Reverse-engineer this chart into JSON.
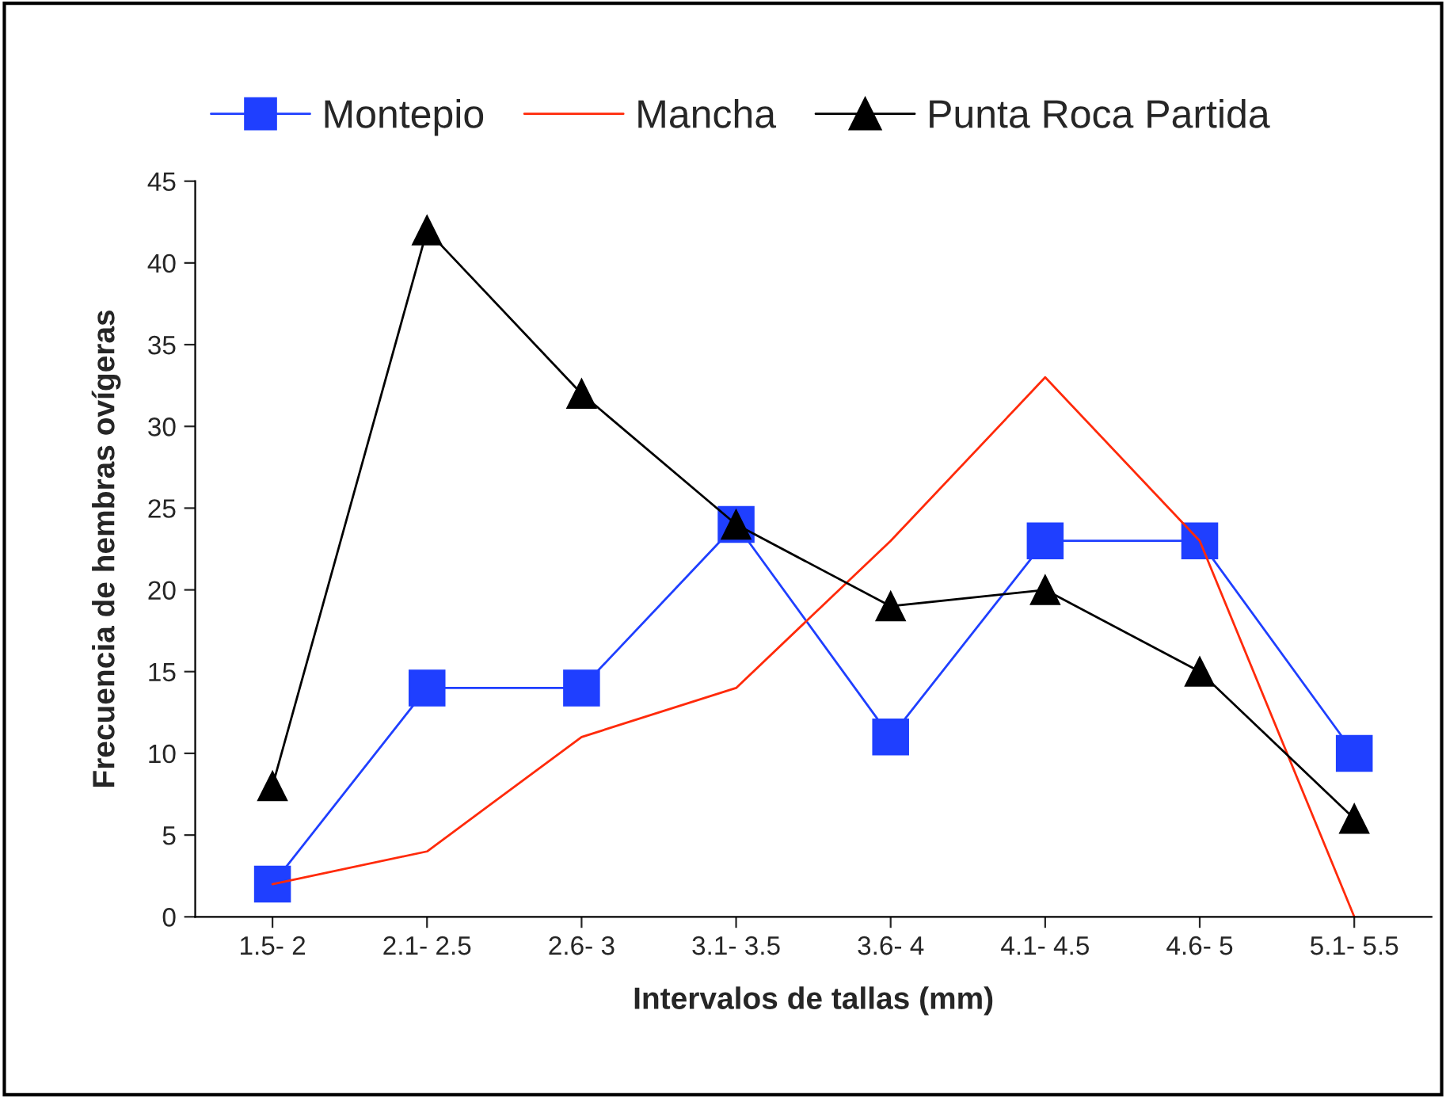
{
  "chart_data": {
    "type": "line",
    "xlabel": "Intervalos de tallas (mm)",
    "ylabel": "Frecuencia de hembras ovígeras",
    "categories": [
      "1.5- 2",
      "2.1- 2.5",
      "2.6- 3",
      "3.1- 3.5",
      "3.6- 4",
      "4.1- 4.5",
      "4.6- 5",
      "5.1- 5.5"
    ],
    "series": [
      {
        "name": "Montepio",
        "color": "#1f3fff",
        "marker": "square",
        "values": [
          2,
          14,
          14,
          24,
          11,
          23,
          23,
          10
        ]
      },
      {
        "name": "Mancha",
        "color": "#ff2a0a",
        "marker": "none",
        "values": [
          2,
          4,
          11,
          14,
          23,
          33,
          23,
          0
        ]
      },
      {
        "name": "Punta Roca Partida",
        "color": "#000000",
        "marker": "triangle",
        "values": [
          8,
          42,
          32,
          24,
          19,
          20,
          15,
          6
        ]
      }
    ],
    "ylim": [
      0,
      45
    ],
    "yticks": [
      0,
      5,
      10,
      15,
      20,
      25,
      30,
      35,
      40,
      45
    ],
    "grid": false,
    "legend": "top",
    "line_style": "solid"
  }
}
